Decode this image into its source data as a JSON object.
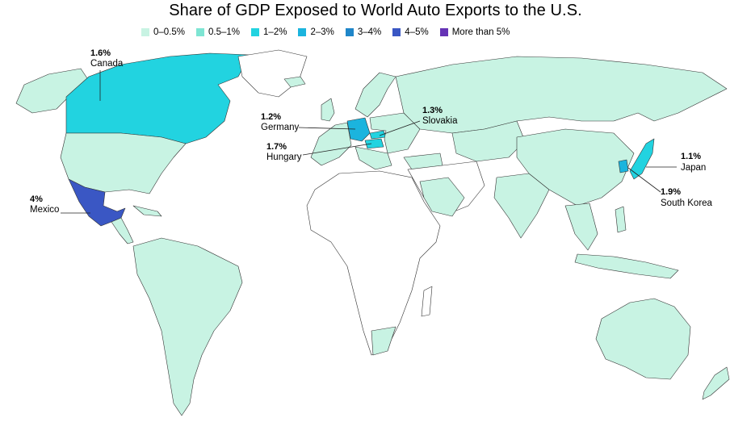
{
  "title": "Share of GDP Exposed to World Auto Exports to the U.S.",
  "legend": [
    {
      "label": "0–0.5%",
      "color": "#c8f3e3"
    },
    {
      "label": "0.5–1%",
      "color": "#7ee5d3"
    },
    {
      "label": "1–2%",
      "color": "#22d3e0"
    },
    {
      "label": "2–3%",
      "color": "#1bb4de"
    },
    {
      "label": "3–4%",
      "color": "#1f86c9"
    },
    {
      "label": "4–5%",
      "color": "#3a57c4"
    },
    {
      "label": "More than 5%",
      "color": "#6533b5"
    }
  ],
  "callouts": {
    "canada": {
      "value": "1.6%",
      "name": "Canada"
    },
    "mexico": {
      "value": "4%",
      "name": "Mexico"
    },
    "germany": {
      "value": "1.2%",
      "name": "Germany"
    },
    "hungary": {
      "value": "1.7%",
      "name": "Hungary"
    },
    "slovakia": {
      "value": "1.3%",
      "name": "Slovakia"
    },
    "japan": {
      "value": "1.1%",
      "name": "Japan"
    },
    "south_korea": {
      "value": "1.9%",
      "name": "South Korea"
    }
  },
  "colors": {
    "no_data": "#ffffff",
    "border": "#333333"
  }
}
